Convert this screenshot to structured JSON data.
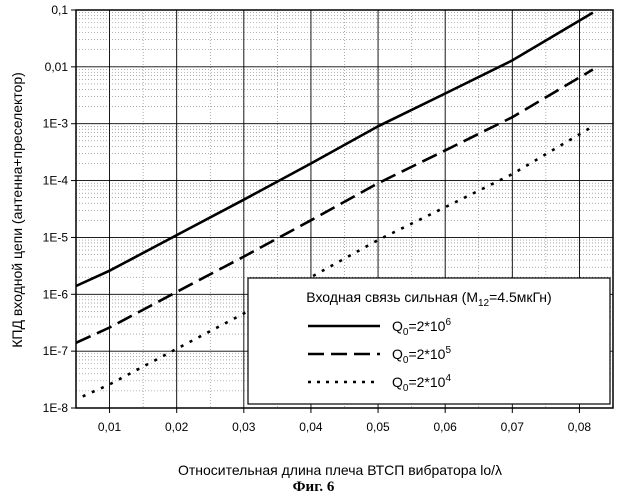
{
  "chart_data": {
    "type": "line",
    "ylabel": "КПД входной цепи (антенна+преселектор)",
    "xlabel": "Относительная длина плеча ВТСП вибратора lo/λ",
    "xlim": [
      0.005,
      0.085
    ],
    "ylim": [
      1e-08,
      0.1
    ],
    "yscale": "log",
    "grid": true,
    "x_ticks": [
      0.01,
      0.02,
      0.03,
      0.04,
      0.05,
      0.06,
      0.07,
      0.08
    ],
    "x_tick_labels": [
      "0,01",
      "0,02",
      "0,03",
      "0,04",
      "0,05",
      "0,06",
      "0,07",
      "0,08"
    ],
    "y_ticks": [
      1e-08,
      1e-07,
      1e-06,
      1e-05,
      0.0001,
      0.001,
      0.01,
      0.1
    ],
    "y_tick_labels": [
      "1E-8",
      "1E-7",
      "1E-6",
      "1E-5",
      "1E-4",
      "1E-3",
      "0,01",
      "0,1"
    ],
    "legend": {
      "placement": "bottom-right",
      "title_main": "Входная связь сильная (M",
      "title_sub": "12",
      "title_tail": "=4.5мкГн)",
      "entries": [
        {
          "q": "Q",
          "q_sub": "0",
          "eq": "=2*10",
          "exp": "6"
        },
        {
          "q": "Q",
          "q_sub": "0",
          "eq": "=2*10",
          "exp": "5"
        },
        {
          "q": "Q",
          "q_sub": "0",
          "eq": "=2*10",
          "exp": "4"
        }
      ]
    },
    "series": [
      {
        "name": "Q0=2*10^6",
        "style": "solid",
        "x": [
          0.005,
          0.01,
          0.02,
          0.03,
          0.04,
          0.05,
          0.06,
          0.07,
          0.082
        ],
        "y": [
          1.4e-06,
          2.6e-06,
          1.1e-05,
          4.6e-05,
          0.0002,
          0.0009,
          0.0034,
          0.013,
          0.09
        ]
      },
      {
        "name": "Q0=2*10^5",
        "style": "dash",
        "x": [
          0.005,
          0.01,
          0.02,
          0.03,
          0.04,
          0.05,
          0.06,
          0.07,
          0.082
        ],
        "y": [
          1.4e-07,
          2.6e-07,
          1.1e-06,
          4.6e-06,
          2e-05,
          9e-05,
          0.00034,
          0.0013,
          0.009
        ]
      },
      {
        "name": "Q0=2*10^4",
        "style": "dot",
        "x": [
          0.006,
          0.01,
          0.02,
          0.03,
          0.04,
          0.05,
          0.06,
          0.07,
          0.082
        ],
        "y": [
          1.6e-08,
          2.6e-08,
          1.1e-07,
          4.6e-07,
          2e-06,
          9e-06,
          3.4e-05,
          0.00013,
          0.0009
        ]
      }
    ]
  },
  "caption": "Фиг. 6"
}
